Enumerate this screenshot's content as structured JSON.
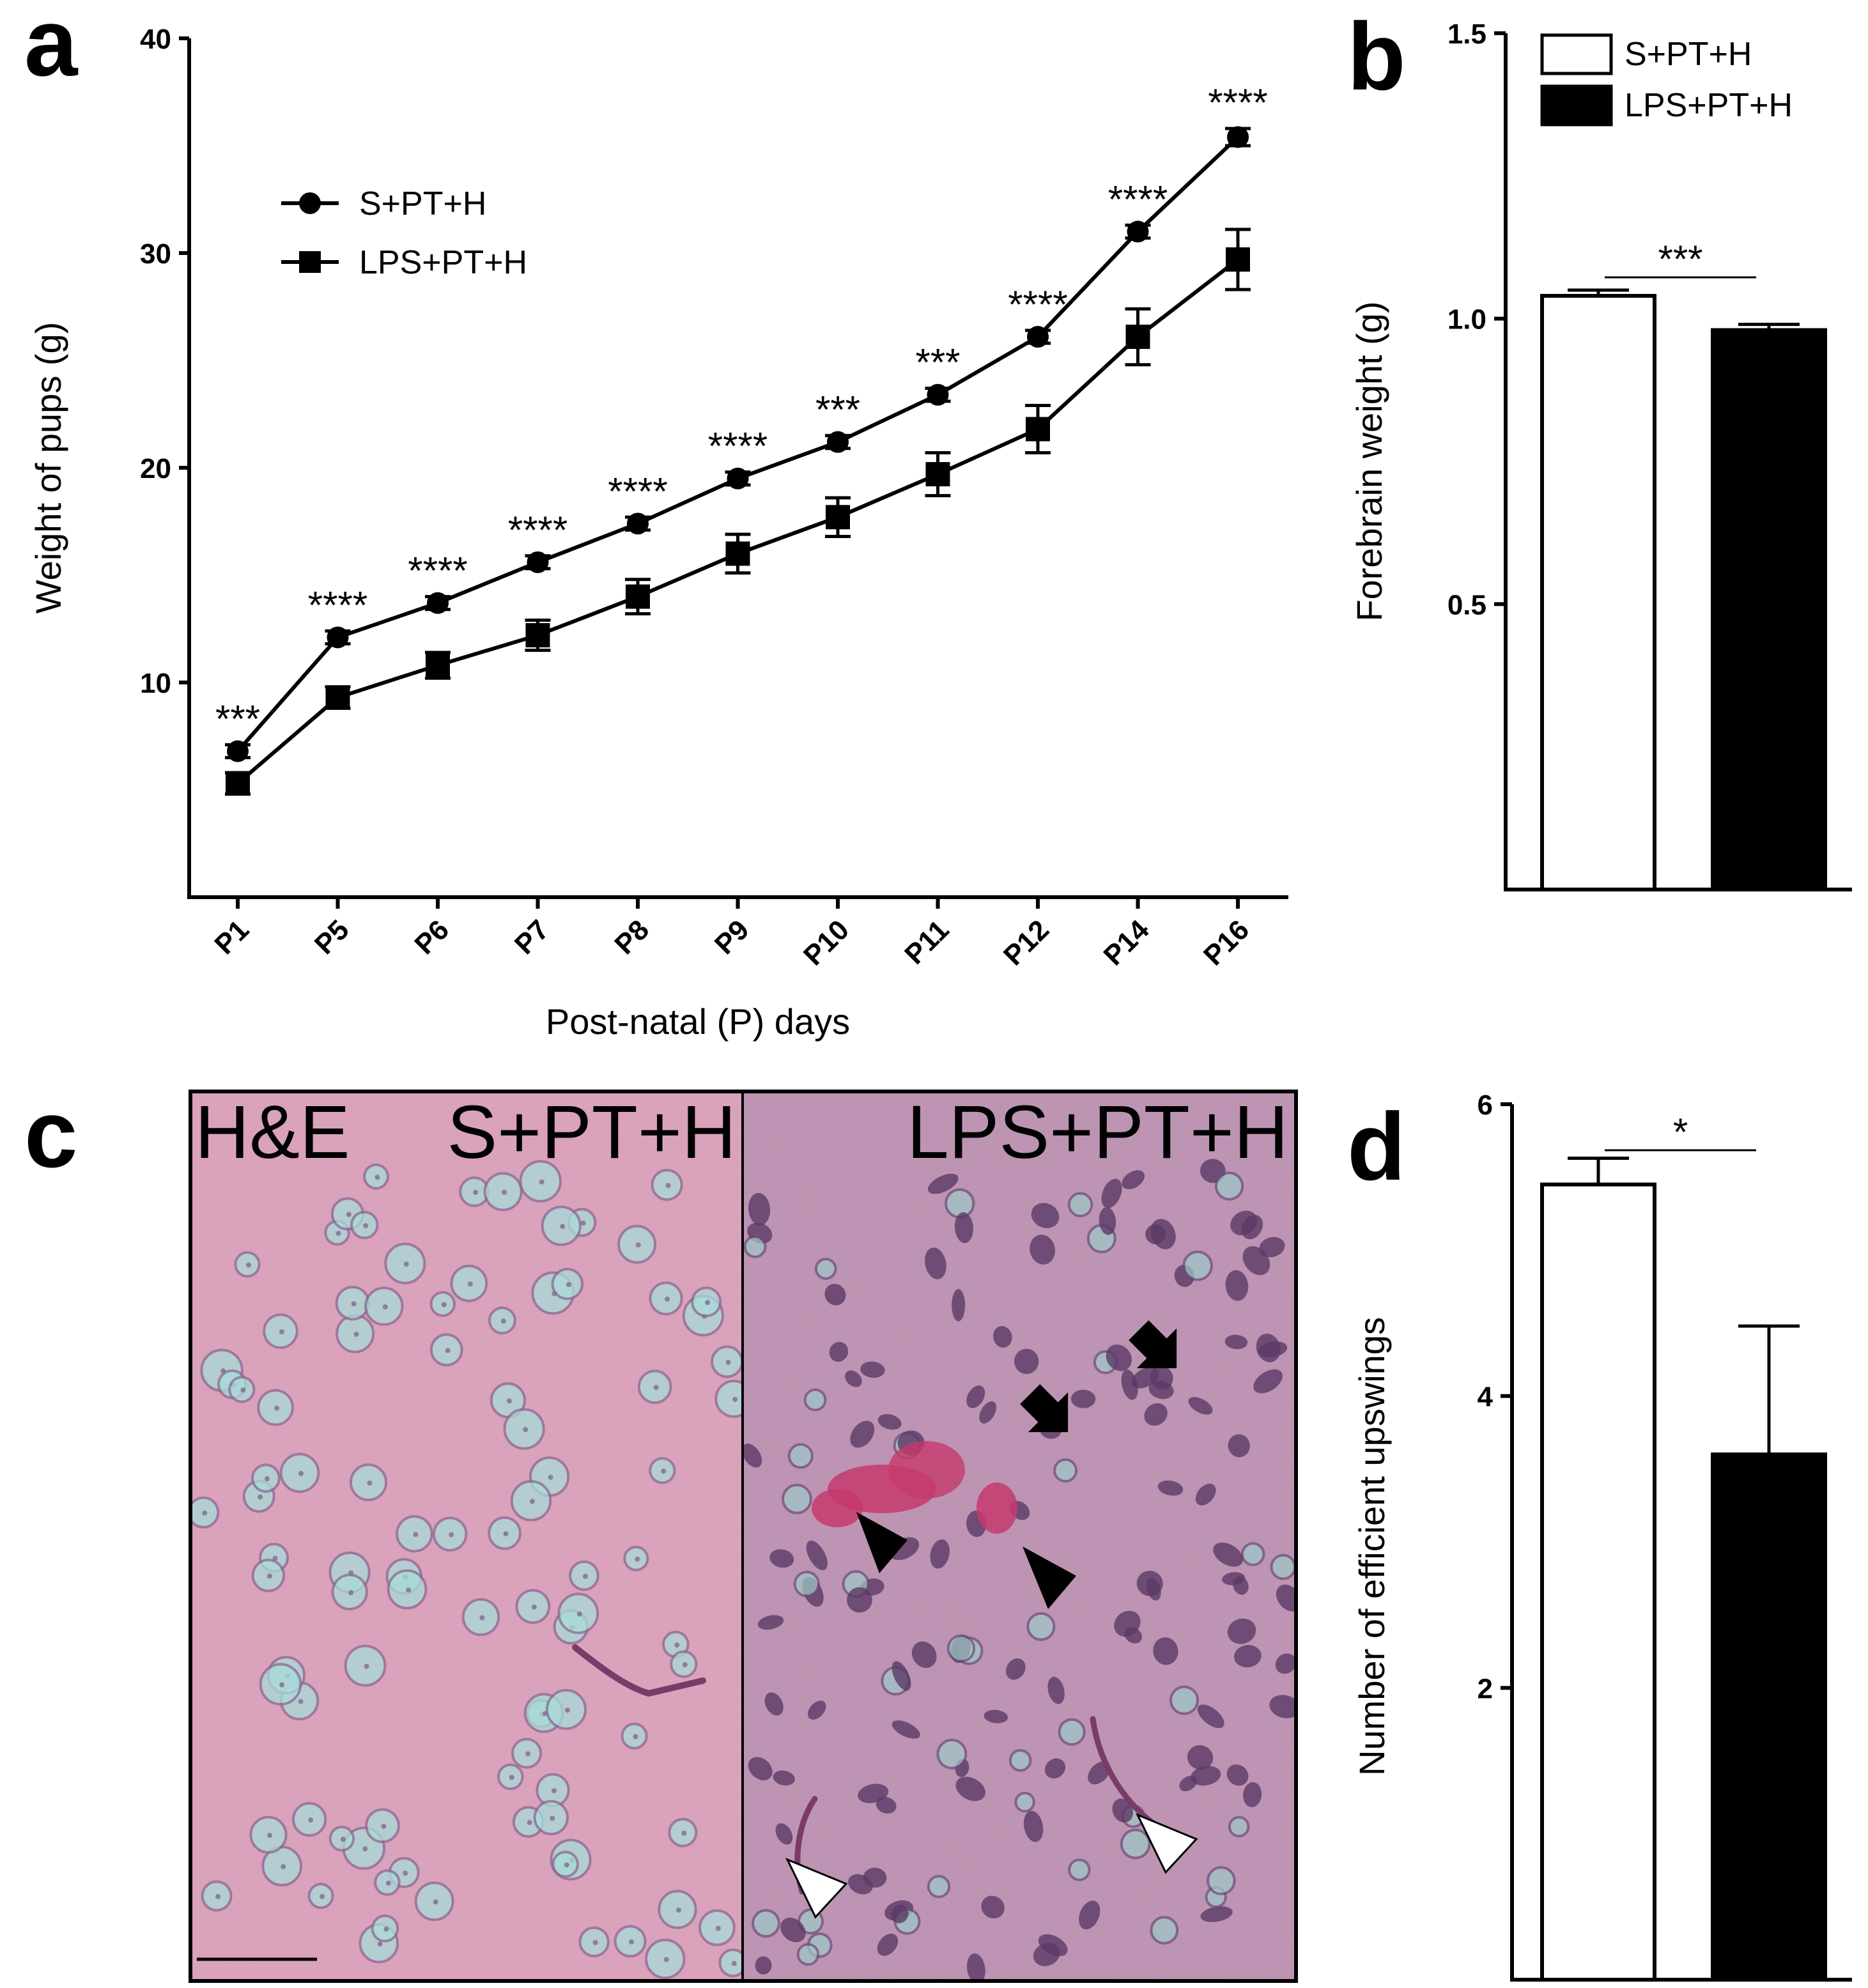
{
  "panels": {
    "a": "a",
    "b": "b",
    "c": "c",
    "d": "d"
  },
  "colors": {
    "s_group": "#ffffff",
    "lps_group": "#000000",
    "tissue": "#d79bb4",
    "tissue_lps": "#b68cac",
    "nucleus": "#a8dcd8",
    "pyknotic": "#5b3a66",
    "hemorrhage": "#c53a6c"
  },
  "chart_data": [
    {
      "panel": "a",
      "type": "line",
      "categories": [
        "P1",
        "P5",
        "P6",
        "P7",
        "P8",
        "P9",
        "P10",
        "P11",
        "P12",
        "P14",
        "P16"
      ],
      "xlabel": "Post-natal (P) days",
      "ylabel": "Weight of pups (g)",
      "ylim": [
        0,
        40
      ],
      "yticks": [
        "10",
        "20",
        "30",
        "40"
      ],
      "series": [
        {
          "name": "S+PT+H",
          "marker": "circle",
          "values": [
            6.8,
            12.1,
            13.7,
            15.6,
            17.4,
            19.5,
            21.2,
            23.4,
            26.1,
            31.0,
            35.4
          ],
          "errors": [
            0.3,
            0.3,
            0.3,
            0.3,
            0.3,
            0.3,
            0.3,
            0.3,
            0.3,
            0.3,
            0.4
          ]
        },
        {
          "name": "LPS+PT+H",
          "marker": "square",
          "values": [
            5.3,
            9.3,
            10.8,
            12.2,
            14.0,
            16.0,
            17.7,
            19.7,
            21.8,
            26.1,
            29.7
          ],
          "errors": [
            0.5,
            0.5,
            0.6,
            0.7,
            0.8,
            0.9,
            0.9,
            1.0,
            1.1,
            1.3,
            1.4
          ]
        }
      ],
      "annotations": [
        "***",
        "****",
        "****",
        "****",
        "****",
        "****",
        "***",
        "***",
        "****",
        "****",
        "****"
      ],
      "legend": "top-left"
    },
    {
      "panel": "b",
      "type": "bar",
      "categories": [
        "S+PT+H",
        "LPS+PT+H"
      ],
      "values": [
        1.04,
        0.98
      ],
      "errors": [
        0.01,
        0.01
      ],
      "ylabel": "Forebrain weight (g)",
      "ylim": [
        0,
        1.5
      ],
      "yticks": [
        "0.5",
        "1.0",
        "1.5"
      ],
      "significance": "***",
      "legend": "top-right"
    },
    {
      "panel": "d",
      "type": "bar",
      "categories": [
        "S+PT+H",
        "LPS+PT+H"
      ],
      "values": [
        5.45,
        3.6
      ],
      "errors": [
        0.18,
        0.88
      ],
      "ylabel": "Number of efficient upswings",
      "ylim": [
        0,
        6
      ],
      "yticks": [
        "2",
        "4",
        "6"
      ],
      "significance": "*"
    }
  ],
  "histology": {
    "stain": "H&E",
    "left_label": "S+PT+H",
    "right_label": "LPS+PT+H"
  }
}
